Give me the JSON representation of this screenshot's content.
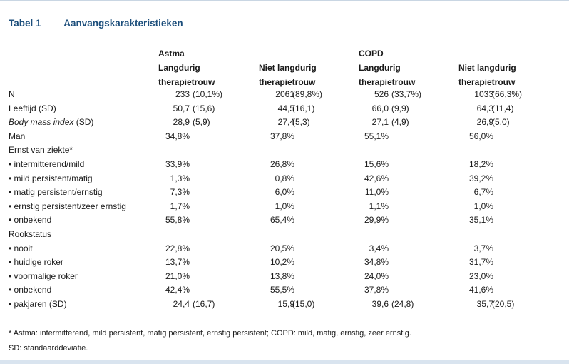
{
  "table_label": "Tabel 1",
  "table_title": "Aanvangskarakteristieken",
  "headers": {
    "group1": "Astma",
    "group2": "COPD",
    "col1": [
      "Langdurig",
      "therapietrouw"
    ],
    "col2": [
      "Niet langdurig",
      "therapietrouw"
    ],
    "col3": [
      "Langdurig",
      "therapietrouw"
    ],
    "col4": [
      "Niet langdurig",
      "therapietrouw"
    ]
  },
  "rows": [
    {
      "label": "N",
      "italic": "",
      "suffix": "",
      "c1v": "233",
      "c1p": "(10,1%)",
      "c2v": "2061",
      "c2p": "(89,8%)",
      "c3v": "526",
      "c3p": "(33,7%)",
      "c4v": "1033",
      "c4p": "(66,3%)"
    },
    {
      "label": "Leeftijd (SD)",
      "italic": "",
      "suffix": "",
      "c1v": "50,7",
      "c1p": "(15,6)",
      "c2v": "44,5",
      "c2p": "(16,1)",
      "c3v": "66,0",
      "c3p": "(9,9)",
      "c4v": "64,3",
      "c4p": "(11,4)"
    },
    {
      "label": "",
      "italic": "Body mass index",
      "suffix": " (SD)",
      "c1v": "28,9",
      "c1p": "(5,9)",
      "c2v": "27,4",
      "c2p": "(5,3)",
      "c3v": "27,1",
      "c3p": "(4,9)",
      "c4v": "26,9",
      "c4p": "(5,0)"
    },
    {
      "label": "Man",
      "italic": "",
      "suffix": "",
      "c1v": "34,8%",
      "c1p": "",
      "c2v": "37,8%",
      "c2p": "",
      "c3v": "55,1%",
      "c3p": "",
      "c4v": "56,0%",
      "c4p": ""
    },
    {
      "label": "Ernst van ziekte*",
      "italic": "",
      "suffix": "",
      "c1v": "",
      "c1p": "",
      "c2v": "",
      "c2p": "",
      "c3v": "",
      "c3p": "",
      "c4v": "",
      "c4p": ""
    },
    {
      "label": "• intermitterend/mild",
      "italic": "",
      "suffix": "",
      "c1v": "33,9%",
      "c1p": "",
      "c2v": "26,8%",
      "c2p": "",
      "c3v": "15,6%",
      "c3p": "",
      "c4v": "18,2%",
      "c4p": ""
    },
    {
      "label": "• mild persistent/matig",
      "italic": "",
      "suffix": "",
      "c1v": "1,3%",
      "c1p": "",
      "c2v": "0,8%",
      "c2p": "",
      "c3v": "42,6%",
      "c3p": "",
      "c4v": "39,2%",
      "c4p": ""
    },
    {
      "label": "• matig persistent/ernstig",
      "italic": "",
      "suffix": "",
      "c1v": "7,3%",
      "c1p": "",
      "c2v": "6,0%",
      "c2p": "",
      "c3v": "11,0%",
      "c3p": "",
      "c4v": "6,7%",
      "c4p": ""
    },
    {
      "label": "• ernstig persistent/zeer ernstig",
      "italic": "",
      "suffix": "",
      "c1v": "1,7%",
      "c1p": "",
      "c2v": "1,0%",
      "c2p": "",
      "c3v": "1,1%",
      "c3p": "",
      "c4v": "1,0%",
      "c4p": ""
    },
    {
      "label": "• onbekend",
      "italic": "",
      "suffix": "",
      "c1v": "55,8%",
      "c1p": "",
      "c2v": "65,4%",
      "c2p": "",
      "c3v": "29,9%",
      "c3p": "",
      "c4v": "35,1%",
      "c4p": ""
    },
    {
      "label": "Rookstatus",
      "italic": "",
      "suffix": "",
      "c1v": "",
      "c1p": "",
      "c2v": "",
      "c2p": "",
      "c3v": "",
      "c3p": "",
      "c4v": "",
      "c4p": ""
    },
    {
      "label": "• nooit",
      "italic": "",
      "suffix": "",
      "c1v": "22,8%",
      "c1p": "",
      "c2v": "20,5%",
      "c2p": "",
      "c3v": "3,4%",
      "c3p": "",
      "c4v": "3,7%",
      "c4p": ""
    },
    {
      "label": "• huidige roker",
      "italic": "",
      "suffix": "",
      "c1v": "13,7%",
      "c1p": "",
      "c2v": "10,2%",
      "c2p": "",
      "c3v": "34,8%",
      "c3p": "",
      "c4v": "31,7%",
      "c4p": ""
    },
    {
      "label": "• voormalige roker",
      "italic": "",
      "suffix": "",
      "c1v": "21,0%",
      "c1p": "",
      "c2v": "13,8%",
      "c2p": "",
      "c3v": "24,0%",
      "c3p": "",
      "c4v": "23,0%",
      "c4p": ""
    },
    {
      "label": "• onbekend",
      "italic": "",
      "suffix": "",
      "c1v": "42,4%",
      "c1p": "",
      "c2v": "55,5%",
      "c2p": "",
      "c3v": "37,8%",
      "c3p": "",
      "c4v": "41,6%",
      "c4p": ""
    },
    {
      "label": "• pakjaren (SD)",
      "italic": "",
      "suffix": "",
      "c1v": "24,4",
      "c1p": "(16,7)",
      "c2v": "15,9",
      "c2p": "(15,0)",
      "c3v": "39,6",
      "c3p": "(24,8)",
      "c4v": "35,7",
      "c4p": "(20,5)"
    }
  ],
  "footnotes": [
    "* Astma: intermitterend, mild persistent, matig persistent, ernstig persistent; COPD: mild, matig, ernstig, zeer ernstig.",
    "SD: standaarddeviatie."
  ]
}
